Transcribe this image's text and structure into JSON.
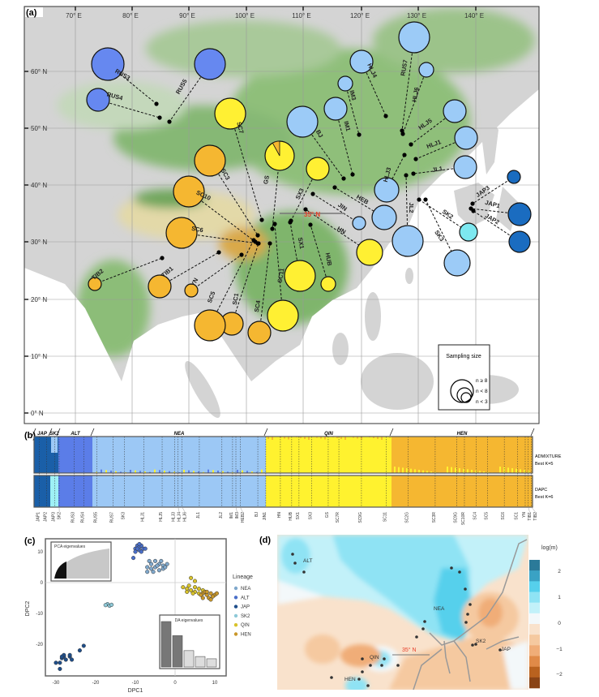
{
  "panel_a": {
    "label": "(a)",
    "lon_ticks": [
      "70° E",
      "80° E",
      "90° E",
      "100° E",
      "110° E",
      "120° E",
      "130° E",
      "140° E"
    ],
    "lat_ticks": [
      "60° N",
      "50° N",
      "40° N",
      "30° N",
      "20° N",
      "10° N",
      "0° N"
    ],
    "line_label": "35° N",
    "lineage_colors": {
      "ALT": "#6688f0",
      "NEA": "#9ccbf7",
      "JAP": "#1a6cc0",
      "SK2": "#7de8f0",
      "QIN": "#fff033",
      "HEN": "#f5b731"
    },
    "sites": [
      {
        "name": "RUS3",
        "lineage": "ALT"
      },
      {
        "name": "RUS5",
        "lineage": "ALT"
      },
      {
        "name": "RUS4",
        "lineage": "ALT"
      },
      {
        "name": "SC7",
        "lineage": "QIN"
      },
      {
        "name": "SC3",
        "lineage": "HEN"
      },
      {
        "name": "SC10",
        "lineage": "HEN"
      },
      {
        "name": "SC6",
        "lineage": "HEN"
      },
      {
        "name": "GS",
        "lineage": "QIN",
        "admixed_share_HEN": 0.08
      },
      {
        "name": "BJ",
        "lineage": "NEA"
      },
      {
        "name": "IM1",
        "lineage": "NEA"
      },
      {
        "name": "IM3",
        "lineage": "NEA"
      },
      {
        "name": "HLJ4",
        "lineage": "NEA"
      },
      {
        "name": "RUS7",
        "lineage": "NEA"
      },
      {
        "name": "HLJ6",
        "lineage": "NEA"
      },
      {
        "name": "HLJ5",
        "lineage": "NEA"
      },
      {
        "name": "HLJ1",
        "lineage": "NEA"
      },
      {
        "name": "JL1",
        "lineage": "NEA"
      },
      {
        "name": "HLJ3",
        "lineage": "NEA"
      },
      {
        "name": "JL2",
        "lineage": "NEA"
      },
      {
        "name": "HEB",
        "lineage": "NEA"
      },
      {
        "name": "JIN",
        "lineage": "NEA"
      },
      {
        "name": "SX3",
        "lineage": "QIN"
      },
      {
        "name": "HN",
        "lineage": "QIN"
      },
      {
        "name": "JAP3",
        "lineage": "JAP"
      },
      {
        "name": "JAP1",
        "lineage": "JAP"
      },
      {
        "name": "JAP2",
        "lineage": "JAP"
      },
      {
        "name": "SK2",
        "lineage": "SK2"
      },
      {
        "name": "SK3",
        "lineage": "NEA"
      },
      {
        "name": "SX1",
        "lineage": "QIN"
      },
      {
        "name": "HUB",
        "lineage": "QIN"
      },
      {
        "name": "SC11",
        "lineage": "QIN"
      },
      {
        "name": "SC4",
        "lineage": "HEN"
      },
      {
        "name": "SC1",
        "lineage": "HEN"
      },
      {
        "name": "SC5",
        "lineage": "HEN"
      },
      {
        "name": "YN",
        "lineage": "HEN"
      },
      {
        "name": "TIB1",
        "lineage": "HEN"
      },
      {
        "name": "TIB2",
        "lineage": "HEN"
      }
    ],
    "legend": {
      "title": "Sampling size",
      "items": [
        "n ≥ 8",
        "n < 8",
        "n < 3"
      ]
    }
  },
  "panel_b": {
    "label": "(b)",
    "groups": [
      {
        "name": "JAP",
        "color": "#1a5fa8"
      },
      {
        "name": "SK2",
        "color": "#1a5fa8",
        "dapc_color": "#9ef0f5"
      },
      {
        "name": "ALT",
        "color": "#5b7de8"
      },
      {
        "name": "NEA",
        "color": "#9cc8f5"
      },
      {
        "name": "QIN",
        "color": "#fff22f"
      },
      {
        "name": "HEN",
        "color": "#f5b731"
      }
    ],
    "populations": [
      "JAP1",
      "JAP2",
      "JAP3",
      "SK2",
      "RUS3",
      "RUS4",
      "RUS5",
      "RUS7",
      "SK3",
      "HLJ1",
      "HLJ5",
      "HLJ3",
      "HLJ4",
      "HLJ6",
      "JL1",
      "JL2",
      "IM1",
      "IM3",
      "HEB2",
      "BJ",
      "JIN1",
      "HN",
      "HUB",
      "SX1",
      "SX3",
      "GS",
      "SC7R",
      "SC9G",
      "SC11",
      "SC2G",
      "SC3R",
      "SC9G",
      "SC10R",
      "SC4",
      "SC5",
      "SC6",
      "SC1",
      "YN",
      "TIB1",
      "TIB2"
    ],
    "admixture_label": "ADMIXTURE",
    "admixture_k": "Best K=5",
    "dapc_label": "DAPC",
    "dapc_k": "Best K=6"
  },
  "chart_data": [
    {
      "type": "scatter",
      "panel_label": "(c)",
      "xlabel": "DPC1",
      "ylabel": "DPC2",
      "xlim": [
        -32,
        13
      ],
      "ylim": [
        -29,
        14
      ],
      "xticks": [
        "-30",
        "-20",
        "-10",
        "0",
        "10"
      ],
      "yticks": [
        "10",
        "0",
        "-10",
        "-20"
      ],
      "legend_title": "Lineage",
      "grid": true,
      "series": [
        {
          "name": "NEA",
          "color": "#7fa8cc",
          "points": [
            [
              -6,
              6
            ],
            [
              -5,
              7
            ],
            [
              -4,
              6
            ],
            [
              -3,
              5.5
            ],
            [
              -5,
              5
            ],
            [
              -4,
              4
            ],
            [
              -6,
              4.5
            ],
            [
              -3.5,
              7
            ],
            [
              -2,
              6
            ],
            [
              -5.5,
              3.5
            ],
            [
              -7,
              5
            ],
            [
              -4.5,
              5.5
            ],
            [
              -3,
              4.5
            ],
            [
              -6.5,
              7
            ],
            [
              -2.5,
              5
            ],
            [
              -7,
              3.5
            ]
          ]
        },
        {
          "name": "ALT",
          "color": "#4a6fc9",
          "points": [
            [
              -10,
              11
            ],
            [
              -9.5,
              12
            ],
            [
              -9,
              11.5
            ],
            [
              -8.5,
              12
            ],
            [
              -9,
              10.5
            ],
            [
              -10,
              10
            ],
            [
              -8,
              11
            ],
            [
              -9.5,
              11
            ],
            [
              -8.5,
              10
            ],
            [
              -10.5,
              8
            ],
            [
              -7.5,
              11
            ],
            [
              -9,
              12.5
            ]
          ]
        },
        {
          "name": "JAP",
          "color": "#1f4e8a",
          "points": [
            [
              -30,
              -26
            ],
            [
              -29,
              -28
            ],
            [
              -29,
              -26
            ],
            [
              -28.5,
              -24.5
            ],
            [
              -28,
              -24
            ],
            [
              -28,
              -23.5
            ],
            [
              -27.5,
              -25
            ],
            [
              -26.5,
              -24
            ],
            [
              -26,
              -25
            ],
            [
              -26.5,
              -23.5
            ],
            [
              -24,
              -22
            ],
            [
              -23,
              -20.5
            ],
            [
              -28.5,
              -24
            ]
          ]
        },
        {
          "name": "SK2",
          "color": "#8ec9d8",
          "points": [
            [
              -17,
              -7
            ],
            [
              -16.5,
              -7.5
            ],
            [
              -16,
              -7.2
            ],
            [
              -17.5,
              -7.3
            ]
          ]
        },
        {
          "name": "QIN",
          "color": "#d8c22a",
          "points": [
            [
              3,
              -2
            ],
            [
              4,
              -2.5
            ],
            [
              5,
              -1.5
            ],
            [
              5,
              -3
            ],
            [
              6,
              -2
            ],
            [
              4.5,
              -3.5
            ],
            [
              3.5,
              -1
            ],
            [
              6,
              -3.5
            ],
            [
              2,
              -1.5
            ],
            [
              4,
              1.5
            ],
            [
              5,
              0.5
            ],
            [
              3,
              -3
            ],
            [
              7,
              -2.5
            ]
          ]
        },
        {
          "name": "HEN",
          "color": "#c9972a",
          "points": [
            [
              7,
              -3.5
            ],
            [
              8,
              -4
            ],
            [
              9,
              -3.5
            ],
            [
              10,
              -4
            ],
            [
              8.5,
              -5
            ],
            [
              7.5,
              -3
            ],
            [
              9.5,
              -4.5
            ],
            [
              6.5,
              -4
            ],
            [
              8,
              -3
            ],
            [
              10.5,
              -3.5
            ],
            [
              7,
              -5
            ],
            [
              9,
              -5.5
            ]
          ]
        }
      ]
    },
    {
      "type": "area",
      "title": "PCA eigenvalues",
      "retained_fraction": 0.25
    },
    {
      "type": "bar",
      "title": "DA eigenvalues",
      "values": [
        1.0,
        0.69,
        0.36,
        0.23,
        0.18
      ],
      "retained": 2
    }
  ],
  "panel_d": {
    "label": "(d)",
    "colorbar_title": "log(m)",
    "colorbar_ticks": [
      "2",
      "1",
      "0",
      "−1",
      "−2"
    ],
    "colorbar_colors": [
      "#2b7a99",
      "#3aa2c4",
      "#56d0ec",
      "#8fe3f4",
      "#c2f1f9",
      "#f3f8fa",
      "#f9e2cc",
      "#f5c9a0",
      "#f0ad78",
      "#e08a48",
      "#b9621f",
      "#8a4416"
    ],
    "region_labels": [
      "ALT",
      "NEA",
      "QIN",
      "HEN",
      "SK2",
      "JAP"
    ],
    "line_label": "35° N"
  }
}
